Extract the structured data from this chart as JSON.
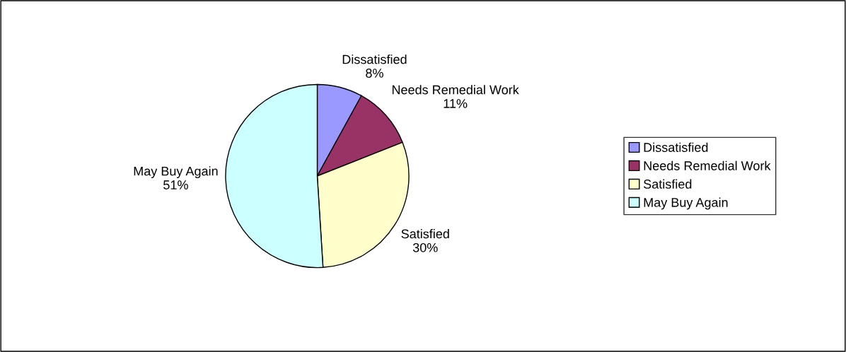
{
  "chart_data": {
    "type": "pie",
    "categories": [
      "Dissatisfied",
      "Needs Remedial Work",
      "Satisfied",
      "May Buy Again"
    ],
    "values": [
      8,
      11,
      30,
      51
    ],
    "value_labels": [
      "8%",
      "11%",
      "30%",
      "51%"
    ],
    "colors": [
      "#9999ff",
      "#993366",
      "#ffffcc",
      "#ccffff"
    ],
    "legend": "right"
  }
}
